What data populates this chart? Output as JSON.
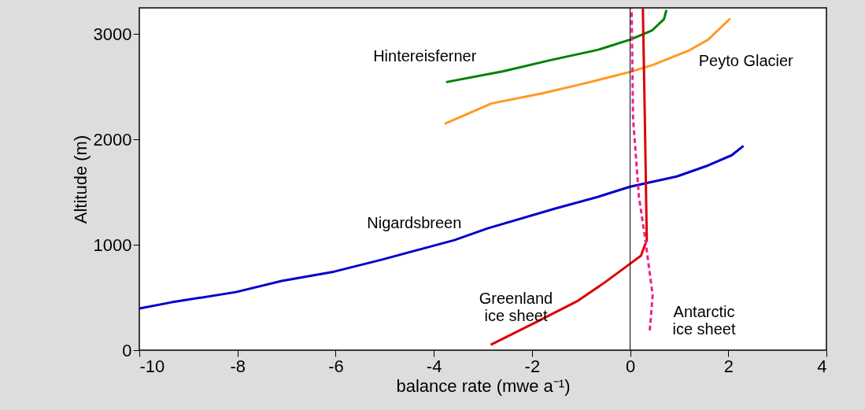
{
  "chart_data": {
    "type": "line",
    "xlabel": "balance rate (mwe a⁻¹)",
    "ylabel": "Altitude (m)",
    "xlim": [
      -10,
      4
    ],
    "ylim": [
      0,
      3250
    ],
    "xticks": [
      -10,
      -8,
      -6,
      -4,
      -2,
      0,
      2,
      4
    ],
    "yticks": [
      0,
      1000,
      2000,
      3000
    ],
    "grid": false,
    "ref_lines": [
      {
        "axis": "x",
        "value": 0,
        "color": "#000000"
      }
    ],
    "series": [
      {
        "name": "Nigardsbreen",
        "color": "#0000cc",
        "line_style": "solid",
        "x": [
          -10,
          -9.34,
          -8.03,
          -7.1,
          -6.03,
          -5.07,
          -3.58,
          -2.9,
          -1.54,
          -0.66,
          0,
          0.95,
          1.59,
          2.07,
          2.31
        ],
        "values": [
          396,
          455,
          552,
          657,
          746,
          858,
          1045,
          1157,
          1343,
          1455,
          1552,
          1649,
          1754,
          1851,
          1940
        ]
      },
      {
        "name": "Hintereisferner",
        "color": "#008000",
        "line_style": "solid",
        "x": [
          -3.75,
          -2.58,
          -1.62,
          -0.66,
          0,
          0.45,
          0.69,
          0.74
        ],
        "values": [
          2545,
          2649,
          2754,
          2851,
          2948,
          3037,
          3142,
          3231
        ]
      },
      {
        "name": "Peyto Glacier",
        "color": "#ff9922",
        "line_style": "solid",
        "x": [
          -3.78,
          -2.82,
          -1.78,
          -0.82,
          0,
          0.47,
          1.19,
          1.59,
          2.04
        ],
        "values": [
          2149,
          2343,
          2440,
          2545,
          2642,
          2709,
          2843,
          2948,
          3149
        ]
      },
      {
        "name": "Greenland ice sheet",
        "color": "#dd0000",
        "line_style": "solid",
        "x": [
          -2.84,
          -1.94,
          -1.06,
          -0.5,
          0,
          0.22,
          0.34,
          0.3,
          0.26
        ],
        "values": [
          52,
          261,
          470,
          649,
          821,
          896,
          1045,
          2201,
          3246
        ]
      },
      {
        "name": "Antarctic ice sheet",
        "color": "#ee2288",
        "line_style": "dashed",
        "x": [
          0.4,
          0.46,
          0.3,
          0.18,
          0.06,
          0.03
        ],
        "values": [
          187,
          522,
          1082,
          1455,
          2201,
          3246
        ]
      }
    ]
  }
}
